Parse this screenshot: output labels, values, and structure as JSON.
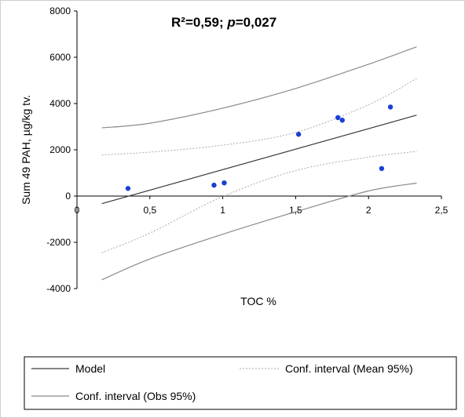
{
  "chart_data": {
    "type": "scatter",
    "annotation": {
      "r2_label": "R²=0,59; ",
      "p_symbol": "p",
      "p_value": "=0,027"
    },
    "xlabel": "TOC  %",
    "ylabel": "Sum 49 PAH,  µg/kg tv.",
    "xlim": [
      0,
      2.5
    ],
    "ylim": [
      -4000,
      8000
    ],
    "x_ticks": [
      {
        "v": 0,
        "label": "0"
      },
      {
        "v": 0.5,
        "label": "0,5"
      },
      {
        "v": 1,
        "label": "1"
      },
      {
        "v": 1.5,
        "label": "1,5"
      },
      {
        "v": 2,
        "label": "2"
      },
      {
        "v": 2.5,
        "label": "2,5"
      }
    ],
    "y_ticks": [
      {
        "v": -4000,
        "label": "-4000"
      },
      {
        "v": -2000,
        "label": "-2000"
      },
      {
        "v": 0,
        "label": "0"
      },
      {
        "v": 2000,
        "label": "2000"
      },
      {
        "v": 4000,
        "label": "4000"
      },
      {
        "v": 6000,
        "label": "6000"
      },
      {
        "v": 8000,
        "label": "8000"
      }
    ],
    "points": [
      {
        "x": 0.35,
        "y": 330
      },
      {
        "x": 0.94,
        "y": 470
      },
      {
        "x": 1.01,
        "y": 570
      },
      {
        "x": 1.52,
        "y": 2670
      },
      {
        "x": 1.79,
        "y": 3390
      },
      {
        "x": 1.82,
        "y": 3280
      },
      {
        "x": 2.09,
        "y": 1190
      },
      {
        "x": 2.15,
        "y": 3850
      }
    ],
    "model_line": [
      [
        0.17,
        -330
      ],
      [
        2.33,
        3500
      ]
    ],
    "conf_mean": {
      "upper": [
        [
          0.17,
          1780
        ],
        [
          0.5,
          1900
        ],
        [
          1.0,
          2200
        ],
        [
          1.5,
          2750
        ],
        [
          2.0,
          3950
        ],
        [
          2.33,
          5080
        ]
      ],
      "lower": [
        [
          0.17,
          -2450
        ],
        [
          0.5,
          -1600
        ],
        [
          1.0,
          -20
        ],
        [
          1.5,
          1100
        ],
        [
          2.0,
          1680
        ],
        [
          2.33,
          1930
        ]
      ]
    },
    "conf_obs": {
      "upper": [
        [
          0.17,
          2950
        ],
        [
          0.5,
          3150
        ],
        [
          1.0,
          3800
        ],
        [
          1.5,
          4650
        ],
        [
          2.0,
          5700
        ],
        [
          2.33,
          6450
        ]
      ],
      "lower": [
        [
          0.17,
          -3620
        ],
        [
          0.5,
          -2720
        ],
        [
          1.0,
          -1650
        ],
        [
          1.5,
          -680
        ],
        [
          2.0,
          220
        ],
        [
          2.33,
          560
        ]
      ]
    },
    "colors": {
      "points": "#1a3fd6",
      "model": "#3a3a3a",
      "conf_mean": "#aaaaaa",
      "conf_obs": "#8a8a8a"
    },
    "legend": {
      "placement": "bottom",
      "model": "Model",
      "conf_mean": "Conf. interval (Mean 95%)",
      "conf_obs": "Conf. interval (Obs 95%)"
    }
  }
}
